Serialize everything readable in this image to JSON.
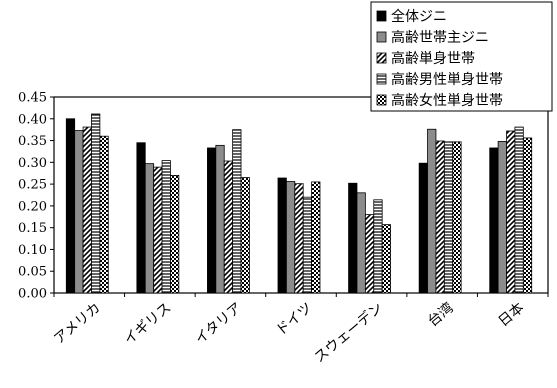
{
  "chart_data": {
    "type": "bar",
    "title": "",
    "xlabel": "",
    "ylabel": "",
    "ylim": [
      0,
      0.45
    ],
    "yticks": [
      "0.00",
      "0.05",
      "0.10",
      "0.15",
      "0.20",
      "0.25",
      "0.30",
      "0.35",
      "0.40",
      "0.45"
    ],
    "grid": false,
    "legend_position": "top-right",
    "categories": [
      "アメリカ",
      "イギリス",
      "イタリア",
      "ドイツ",
      "スウェーデン",
      "台湾",
      "日本"
    ],
    "series": [
      {
        "name": "全体ジニ",
        "pattern": "solid-black",
        "values": [
          0.4,
          0.345,
          0.333,
          0.264,
          0.252,
          0.298,
          0.333
        ]
      },
      {
        "name": "高齢世帯主ジニ",
        "pattern": "gray",
        "values": [
          0.373,
          0.297,
          0.339,
          0.256,
          0.23,
          0.376,
          0.348
        ]
      },
      {
        "name": "高齢単身世帯",
        "pattern": "diagonal",
        "values": [
          0.381,
          0.289,
          0.303,
          0.251,
          0.18,
          0.349,
          0.372
        ]
      },
      {
        "name": "高齢男性単身世帯",
        "pattern": "horizontal-lines",
        "values": [
          0.411,
          0.304,
          0.375,
          0.22,
          0.214,
          0.347,
          0.381
        ]
      },
      {
        "name": "高齢女性単身世帯",
        "pattern": "checker",
        "values": [
          0.36,
          0.27,
          0.265,
          0.255,
          0.157,
          0.347,
          0.356
        ]
      }
    ]
  }
}
